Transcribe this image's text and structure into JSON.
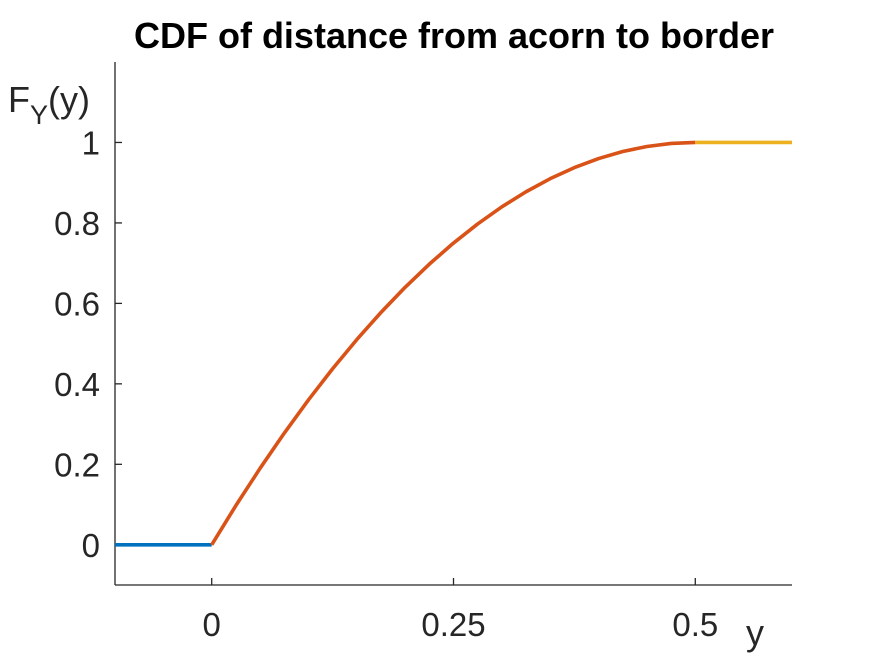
{
  "chart_data": {
    "type": "line",
    "title": "CDF of distance from acorn to border",
    "xlabel": "y",
    "ylabel": "F",
    "ylabel_subscript": "Y",
    "ylabel_suffix": "(y)",
    "xlim": [
      -0.1,
      0.6
    ],
    "ylim": [
      -0.1,
      1.2
    ],
    "xticks": [
      0,
      0.25,
      0.5
    ],
    "xtick_labels": [
      "0",
      "0.25",
      "0.5"
    ],
    "yticks": [
      0,
      0.2,
      0.4,
      0.6,
      0.8,
      1
    ],
    "ytick_labels": [
      "0",
      "0.2",
      "0.4",
      "0.6",
      "0.8",
      "1"
    ],
    "grid": false,
    "box": false,
    "series": [
      {
        "color": "#0072BD",
        "x": [
          -0.1,
          0
        ],
        "y": [
          0,
          0
        ]
      },
      {
        "color": "#D95319",
        "x": [
          0,
          0.025,
          0.05,
          0.075,
          0.1,
          0.125,
          0.15,
          0.175,
          0.2,
          0.225,
          0.25,
          0.275,
          0.3,
          0.325,
          0.35,
          0.375,
          0.4,
          0.425,
          0.45,
          0.475,
          0.5
        ],
        "y": [
          0,
          0.0975,
          0.19,
          0.2775,
          0.36,
          0.4375,
          0.51,
          0.5775,
          0.64,
          0.6975,
          0.75,
          0.7975,
          0.84,
          0.8775,
          0.91,
          0.9375,
          0.96,
          0.9775,
          0.99,
          0.9975,
          1
        ]
      },
      {
        "color": "#EDB120",
        "x": [
          0.5,
          0.6
        ],
        "y": [
          1,
          1
        ]
      }
    ]
  }
}
